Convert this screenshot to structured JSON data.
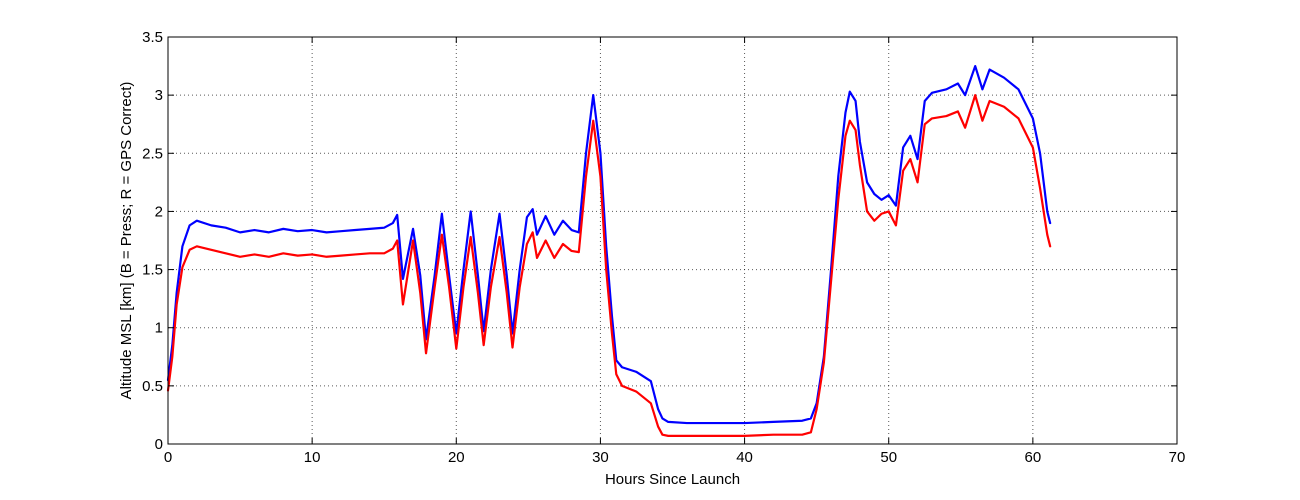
{
  "chart_data": {
    "type": "line",
    "xlabel": "Hours Since Launch",
    "ylabel": "Altitude MSL [km]   (B = Press; R = GPS Correct)",
    "xlim": [
      0,
      70
    ],
    "ylim": [
      0,
      3.5
    ],
    "xticks": [
      0,
      10,
      20,
      30,
      40,
      50,
      60,
      70
    ],
    "yticks": [
      0,
      0.5,
      1,
      1.5,
      2,
      2.5,
      3,
      3.5
    ],
    "xtick_labels": [
      "0",
      "10",
      "20",
      "30",
      "40",
      "50",
      "60",
      "70"
    ],
    "ytick_labels": [
      "0",
      "0.5",
      "1",
      "1.5",
      "2",
      "2.5",
      "3",
      "3.5"
    ],
    "grid": true,
    "series": [
      {
        "color": "#0000ff",
        "points": [
          [
            0,
            0.55
          ],
          [
            0.3,
            0.85
          ],
          [
            0.6,
            1.3
          ],
          [
            1.0,
            1.7
          ],
          [
            1.5,
            1.88
          ],
          [
            2.0,
            1.92
          ],
          [
            3,
            1.88
          ],
          [
            4,
            1.86
          ],
          [
            5,
            1.82
          ],
          [
            6,
            1.84
          ],
          [
            7,
            1.82
          ],
          [
            8,
            1.85
          ],
          [
            9,
            1.83
          ],
          [
            10,
            1.84
          ],
          [
            11,
            1.82
          ],
          [
            12,
            1.83
          ],
          [
            13,
            1.84
          ],
          [
            14,
            1.85
          ],
          [
            15,
            1.86
          ],
          [
            15.6,
            1.9
          ],
          [
            15.9,
            1.97
          ],
          [
            16.3,
            1.42
          ],
          [
            17.0,
            1.85
          ],
          [
            17.5,
            1.45
          ],
          [
            17.9,
            0.9
          ],
          [
            18.5,
            1.45
          ],
          [
            19.0,
            1.98
          ],
          [
            19.5,
            1.45
          ],
          [
            20.0,
            0.95
          ],
          [
            20.5,
            1.5
          ],
          [
            21.0,
            2.0
          ],
          [
            21.5,
            1.45
          ],
          [
            21.9,
            0.97
          ],
          [
            22.4,
            1.5
          ],
          [
            23.0,
            1.98
          ],
          [
            23.5,
            1.45
          ],
          [
            23.9,
            0.95
          ],
          [
            24.4,
            1.5
          ],
          [
            24.9,
            1.95
          ],
          [
            25.3,
            2.02
          ],
          [
            25.6,
            1.8
          ],
          [
            26.2,
            1.96
          ],
          [
            26.8,
            1.8
          ],
          [
            27.4,
            1.92
          ],
          [
            28.0,
            1.84
          ],
          [
            28.5,
            1.82
          ],
          [
            29.0,
            2.5
          ],
          [
            29.5,
            3.0
          ],
          [
            30.0,
            2.5
          ],
          [
            30.4,
            1.7
          ],
          [
            30.8,
            1.1
          ],
          [
            31.1,
            0.72
          ],
          [
            31.5,
            0.66
          ],
          [
            32.5,
            0.62
          ],
          [
            33.5,
            0.54
          ],
          [
            34.0,
            0.3
          ],
          [
            34.3,
            0.22
          ],
          [
            34.7,
            0.19
          ],
          [
            36,
            0.18
          ],
          [
            38,
            0.18
          ],
          [
            40,
            0.18
          ],
          [
            42,
            0.19
          ],
          [
            44,
            0.2
          ],
          [
            44.6,
            0.22
          ],
          [
            45.0,
            0.35
          ],
          [
            45.5,
            0.75
          ],
          [
            46.0,
            1.5
          ],
          [
            46.5,
            2.3
          ],
          [
            47.0,
            2.85
          ],
          [
            47.3,
            3.03
          ],
          [
            47.7,
            2.95
          ],
          [
            48.0,
            2.6
          ],
          [
            48.5,
            2.25
          ],
          [
            49.0,
            2.15
          ],
          [
            49.5,
            2.1
          ],
          [
            50.0,
            2.14
          ],
          [
            50.5,
            2.05
          ],
          [
            51.0,
            2.55
          ],
          [
            51.5,
            2.65
          ],
          [
            52.0,
            2.45
          ],
          [
            52.5,
            2.95
          ],
          [
            53.0,
            3.02
          ],
          [
            54.0,
            3.05
          ],
          [
            54.8,
            3.1
          ],
          [
            55.3,
            3.0
          ],
          [
            56.0,
            3.25
          ],
          [
            56.5,
            3.05
          ],
          [
            57.0,
            3.22
          ],
          [
            58.0,
            3.15
          ],
          [
            59.0,
            3.05
          ],
          [
            60.0,
            2.8
          ],
          [
            60.5,
            2.5
          ],
          [
            61.0,
            2.0
          ],
          [
            61.2,
            1.9
          ]
        ]
      },
      {
        "color": "#ff0000",
        "points": [
          [
            0,
            0.46
          ],
          [
            0.3,
            0.75
          ],
          [
            0.6,
            1.2
          ],
          [
            1.0,
            1.52
          ],
          [
            1.5,
            1.67
          ],
          [
            2.0,
            1.7
          ],
          [
            3,
            1.67
          ],
          [
            4,
            1.64
          ],
          [
            5,
            1.61
          ],
          [
            6,
            1.63
          ],
          [
            7,
            1.61
          ],
          [
            8,
            1.64
          ],
          [
            9,
            1.62
          ],
          [
            10,
            1.63
          ],
          [
            11,
            1.61
          ],
          [
            12,
            1.62
          ],
          [
            13,
            1.63
          ],
          [
            14,
            1.64
          ],
          [
            15,
            1.64
          ],
          [
            15.6,
            1.68
          ],
          [
            15.9,
            1.75
          ],
          [
            16.3,
            1.2
          ],
          [
            17.0,
            1.75
          ],
          [
            17.5,
            1.3
          ],
          [
            17.9,
            0.78
          ],
          [
            18.5,
            1.35
          ],
          [
            19.0,
            1.8
          ],
          [
            19.5,
            1.35
          ],
          [
            20.0,
            0.82
          ],
          [
            20.5,
            1.35
          ],
          [
            21.0,
            1.78
          ],
          [
            21.5,
            1.3
          ],
          [
            21.9,
            0.85
          ],
          [
            22.4,
            1.35
          ],
          [
            23.0,
            1.78
          ],
          [
            23.5,
            1.3
          ],
          [
            23.9,
            0.83
          ],
          [
            24.4,
            1.35
          ],
          [
            24.9,
            1.72
          ],
          [
            25.3,
            1.82
          ],
          [
            25.6,
            1.6
          ],
          [
            26.2,
            1.75
          ],
          [
            26.8,
            1.6
          ],
          [
            27.4,
            1.72
          ],
          [
            28.0,
            1.66
          ],
          [
            28.5,
            1.65
          ],
          [
            29.0,
            2.3
          ],
          [
            29.5,
            2.78
          ],
          [
            30.0,
            2.3
          ],
          [
            30.4,
            1.5
          ],
          [
            30.8,
            0.95
          ],
          [
            31.1,
            0.6
          ],
          [
            31.5,
            0.5
          ],
          [
            32.5,
            0.45
          ],
          [
            33.5,
            0.35
          ],
          [
            34.0,
            0.15
          ],
          [
            34.3,
            0.08
          ],
          [
            34.7,
            0.07
          ],
          [
            36,
            0.07
          ],
          [
            38,
            0.07
          ],
          [
            40,
            0.07
          ],
          [
            42,
            0.08
          ],
          [
            44,
            0.08
          ],
          [
            44.6,
            0.1
          ],
          [
            45.0,
            0.3
          ],
          [
            45.5,
            0.7
          ],
          [
            46.0,
            1.4
          ],
          [
            46.5,
            2.1
          ],
          [
            47.0,
            2.65
          ],
          [
            47.3,
            2.78
          ],
          [
            47.7,
            2.7
          ],
          [
            48.0,
            2.4
          ],
          [
            48.5,
            2.0
          ],
          [
            49.0,
            1.92
          ],
          [
            49.5,
            1.98
          ],
          [
            50.0,
            2.0
          ],
          [
            50.5,
            1.88
          ],
          [
            51.0,
            2.35
          ],
          [
            51.5,
            2.45
          ],
          [
            52.0,
            2.25
          ],
          [
            52.5,
            2.75
          ],
          [
            53.0,
            2.8
          ],
          [
            54.0,
            2.82
          ],
          [
            54.8,
            2.86
          ],
          [
            55.3,
            2.72
          ],
          [
            56.0,
            3.0
          ],
          [
            56.5,
            2.78
          ],
          [
            57.0,
            2.95
          ],
          [
            58.0,
            2.9
          ],
          [
            59.0,
            2.8
          ],
          [
            60.0,
            2.55
          ],
          [
            60.5,
            2.2
          ],
          [
            61.0,
            1.8
          ],
          [
            61.2,
            1.7
          ]
        ]
      }
    ]
  }
}
